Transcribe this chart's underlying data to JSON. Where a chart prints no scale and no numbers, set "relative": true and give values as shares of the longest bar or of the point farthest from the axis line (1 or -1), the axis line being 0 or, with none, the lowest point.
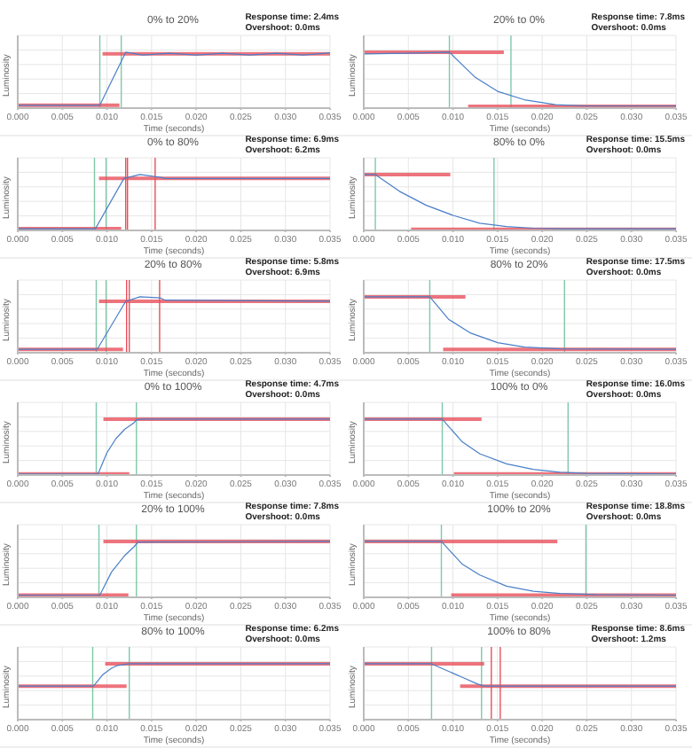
{
  "chart_data": [
    {
      "type": "line",
      "title": "0% to 20%",
      "annotations": [
        "Response time: 2.4ms",
        "Overshoot: 0.0ms"
      ],
      "xlabel": "Time (seconds)",
      "ylabel": "Luminosity",
      "relative": true,
      "grid": true,
      "xlim": [
        0,
        0.035
      ],
      "xticks": [
        {
          "value": 0,
          "label": "0.000"
        },
        {
          "value": 0.005,
          "label": "0.005"
        },
        {
          "value": 0.01,
          "label": "0.010"
        },
        {
          "value": 0.015,
          "label": "0.015"
        },
        {
          "value": 0.02,
          "label": "0.020"
        },
        {
          "value": 0.025,
          "label": "0.025"
        },
        {
          "value": 0.03,
          "label": "0.030"
        },
        {
          "value": 0.035,
          "label": "0.035"
        }
      ],
      "series": [
        {
          "type": "line",
          "color": "#e8505b",
          "x": [
            0,
            0.0114
          ],
          "values": [
            0.05,
            0.05
          ]
        },
        {
          "type": "line",
          "color": "#e8505b",
          "x": [
            0.0095,
            0.035
          ],
          "values": [
            0.97,
            0.97
          ]
        },
        {
          "type": "line",
          "color": "#4a7fc8",
          "x": [
            0,
            0.0092,
            0.0121,
            0.014,
            0.017,
            0.02,
            0.023,
            0.026,
            0.029,
            0.032,
            0.035
          ],
          "values": [
            0.05,
            0.05,
            1,
            0.95,
            0.98,
            0.95,
            0.98,
            0.95,
            0.98,
            0.95,
            0.99
          ]
        }
      ],
      "ref_lines": [
        {
          "axis": "x",
          "value": 0.0092,
          "color": "#7fc8a9"
        },
        {
          "axis": "x",
          "value": 0.0116,
          "color": "#7fc8a9"
        }
      ]
    },
    {
      "type": "line",
      "title": "20% to 0%",
      "annotations": [
        "Response time: 7.8ms",
        "Overshoot: 0.0ms"
      ],
      "xlabel": "Time (seconds)",
      "ylabel": "Luminosity",
      "relative": true,
      "grid": true,
      "xlim": [
        0,
        0.035
      ],
      "xticks": [
        {
          "value": 0,
          "label": "0.000"
        },
        {
          "value": 0.005,
          "label": "0.005"
        },
        {
          "value": 0.01,
          "label": "0.010"
        },
        {
          "value": 0.015,
          "label": "0.015"
        },
        {
          "value": 0.02,
          "label": "0.020"
        },
        {
          "value": 0.025,
          "label": "0.025"
        },
        {
          "value": 0.03,
          "label": "0.030"
        },
        {
          "value": 0.035,
          "label": "0.035"
        }
      ],
      "series": [
        {
          "type": "line",
          "color": "#e8505b",
          "x": [
            0,
            0.0157
          ],
          "values": [
            1,
            1
          ]
        },
        {
          "type": "line",
          "color": "#e8505b",
          "x": [
            0.0117,
            0.035
          ],
          "values": [
            0.03,
            0.03
          ]
        },
        {
          "type": "line",
          "color": "#4a7fc8",
          "x": [
            0,
            0.0045,
            0.0096,
            0.0125,
            0.015,
            0.018,
            0.0215,
            0.025,
            0.035
          ],
          "values": [
            0.97,
            0.98,
            1,
            0.55,
            0.3,
            0.15,
            0.06,
            0.04,
            0.04
          ]
        }
      ],
      "ref_lines": [
        {
          "axis": "x",
          "value": 0.0096,
          "color": "#7fc8a9"
        },
        {
          "axis": "x",
          "value": 0.0165,
          "color": "#7fc8a9"
        }
      ]
    },
    {
      "type": "line",
      "title": "0% to 80%",
      "annotations": [
        "Response time: 6.9ms",
        "Overshoot: 6.2ms"
      ],
      "xlabel": "Time (seconds)",
      "ylabel": "Luminosity",
      "relative": true,
      "grid": true,
      "xlim": [
        0,
        0.035
      ],
      "xticks": [
        {
          "value": 0,
          "label": "0.000"
        },
        {
          "value": 0.005,
          "label": "0.005"
        },
        {
          "value": 0.01,
          "label": "0.010"
        },
        {
          "value": 0.015,
          "label": "0.015"
        },
        {
          "value": 0.02,
          "label": "0.020"
        },
        {
          "value": 0.025,
          "label": "0.025"
        },
        {
          "value": 0.03,
          "label": "0.030"
        },
        {
          "value": 0.035,
          "label": "0.035"
        }
      ],
      "series": [
        {
          "type": "line",
          "color": "#e8505b",
          "x": [
            0,
            0.0116
          ],
          "values": [
            0.03,
            0.03
          ]
        },
        {
          "type": "line",
          "color": "#e8505b",
          "x": [
            0.0091,
            0.035
          ],
          "values": [
            0.93,
            0.93
          ]
        },
        {
          "type": "line",
          "color": "#4a7fc8",
          "x": [
            0,
            0.0087,
            0.0119,
            0.0137,
            0.016,
            0.0165,
            0.035
          ],
          "values": [
            0.03,
            0.03,
            0.93,
            1,
            0.95,
            0.93,
            0.93
          ]
        }
      ],
      "ref_lines": [
        {
          "axis": "x",
          "value": 0.0086,
          "color": "#7fc8a9"
        },
        {
          "axis": "x",
          "value": 0.0099,
          "color": "#7fc8a9"
        },
        {
          "axis": "x",
          "value": 0.0121,
          "color": "#e8505b"
        },
        {
          "axis": "x",
          "value": 0.0123,
          "color": "#e8505b"
        },
        {
          "axis": "x",
          "value": 0.0154,
          "color": "#e8505b"
        }
      ]
    },
    {
      "type": "line",
      "title": "80% to 0%",
      "annotations": [
        "Response time: 15.5ms",
        "Overshoot: 0.0ms"
      ],
      "xlabel": "Time (seconds)",
      "ylabel": "Luminosity",
      "relative": true,
      "grid": true,
      "xlim": [
        0,
        0.035
      ],
      "xticks": [
        {
          "value": 0,
          "label": "0.000"
        },
        {
          "value": 0.005,
          "label": "0.005"
        },
        {
          "value": 0.01,
          "label": "0.010"
        },
        {
          "value": 0.015,
          "label": "0.015"
        },
        {
          "value": 0.02,
          "label": "0.020"
        },
        {
          "value": 0.025,
          "label": "0.025"
        },
        {
          "value": 0.03,
          "label": "0.030"
        },
        {
          "value": 0.035,
          "label": "0.035"
        }
      ],
      "series": [
        {
          "type": "line",
          "color": "#e8505b",
          "x": [
            0,
            0.0097
          ],
          "values": [
            1,
            1
          ]
        },
        {
          "type": "line",
          "color": "#e8505b",
          "x": [
            0.0053,
            0.035
          ],
          "values": [
            0.02,
            0.02
          ]
        },
        {
          "type": "line",
          "color": "#4a7fc8",
          "x": [
            0,
            0.0013,
            0.004,
            0.007,
            0.01,
            0.013,
            0.016,
            0.019,
            0.022,
            0.035
          ],
          "values": [
            1,
            1,
            0.7,
            0.45,
            0.27,
            0.13,
            0.07,
            0.04,
            0.03,
            0.03
          ]
        }
      ],
      "ref_lines": [
        {
          "axis": "x",
          "value": 0.0013,
          "color": "#7fc8a9"
        },
        {
          "axis": "x",
          "value": 0.0146,
          "color": "#7fc8a9"
        }
      ]
    },
    {
      "type": "line",
      "title": "20% to 80%",
      "annotations": [
        "Response time: 5.8ms",
        "Overshoot: 6.9ms"
      ],
      "xlabel": "Time (seconds)",
      "ylabel": "Luminosity",
      "relative": true,
      "grid": true,
      "xlim": [
        0,
        0.035
      ],
      "xticks": [
        {
          "value": 0,
          "label": "0.000"
        },
        {
          "value": 0.005,
          "label": "0.005"
        },
        {
          "value": 0.01,
          "label": "0.010"
        },
        {
          "value": 0.015,
          "label": "0.015"
        },
        {
          "value": 0.02,
          "label": "0.020"
        },
        {
          "value": 0.025,
          "label": "0.025"
        },
        {
          "value": 0.03,
          "label": "0.030"
        },
        {
          "value": 0.035,
          "label": "0.035"
        }
      ],
      "series": [
        {
          "type": "line",
          "color": "#e8505b",
          "x": [
            0,
            0.0118
          ],
          "values": [
            0.06,
            0.06
          ]
        },
        {
          "type": "line",
          "color": "#e8505b",
          "x": [
            0.0091,
            0.035
          ],
          "values": [
            0.92,
            0.92
          ]
        },
        {
          "type": "line",
          "color": "#4a7fc8",
          "x": [
            0,
            0.0089,
            0.0121,
            0.0137,
            0.016,
            0.0165,
            0.035
          ],
          "values": [
            0.06,
            0.06,
            0.92,
            1,
            0.98,
            0.94,
            0.92
          ]
        }
      ],
      "ref_lines": [
        {
          "axis": "x",
          "value": 0.0088,
          "color": "#7fc8a9"
        },
        {
          "axis": "x",
          "value": 0.0099,
          "color": "#7fc8a9"
        },
        {
          "axis": "x",
          "value": 0.0122,
          "color": "#e8505b"
        },
        {
          "axis": "x",
          "value": 0.0125,
          "color": "#e8505b"
        },
        {
          "axis": "x",
          "value": 0.0159,
          "color": "#e8505b"
        }
      ]
    },
    {
      "type": "line",
      "title": "80% to 20%",
      "annotations": [
        "Response time: 17.5ms",
        "Overshoot: 0.0ms"
      ],
      "xlabel": "Time (seconds)",
      "ylabel": "Luminosity",
      "relative": true,
      "grid": true,
      "xlim": [
        0,
        0.035
      ],
      "xticks": [
        {
          "value": 0,
          "label": "0.000"
        },
        {
          "value": 0.005,
          "label": "0.005"
        },
        {
          "value": 0.01,
          "label": "0.010"
        },
        {
          "value": 0.015,
          "label": "0.015"
        },
        {
          "value": 0.02,
          "label": "0.020"
        },
        {
          "value": 0.025,
          "label": "0.025"
        },
        {
          "value": 0.03,
          "label": "0.030"
        },
        {
          "value": 0.035,
          "label": "0.035"
        }
      ],
      "series": [
        {
          "type": "line",
          "color": "#e8505b",
          "x": [
            0,
            0.0114
          ],
          "values": [
            1,
            1
          ]
        },
        {
          "type": "line",
          "color": "#e8505b",
          "x": [
            0.0089,
            0.035
          ],
          "values": [
            0.06,
            0.06
          ]
        },
        {
          "type": "line",
          "color": "#4a7fc8",
          "x": [
            0,
            0.0074,
            0.0095,
            0.012,
            0.015,
            0.018,
            0.022,
            0.035
          ],
          "values": [
            1,
            1,
            0.6,
            0.35,
            0.18,
            0.1,
            0.07,
            0.06
          ]
        }
      ],
      "ref_lines": [
        {
          "axis": "x",
          "value": 0.0074,
          "color": "#7fc8a9"
        },
        {
          "axis": "x",
          "value": 0.0225,
          "color": "#7fc8a9"
        }
      ]
    },
    {
      "type": "line",
      "title": "0% to 100%",
      "annotations": [
        "Response time: 4.7ms",
        "Overshoot: 0.0ms"
      ],
      "xlabel": "Time (seconds)",
      "ylabel": "Luminosity",
      "relative": true,
      "grid": true,
      "xlim": [
        0,
        0.035
      ],
      "xticks": [
        {
          "value": 0,
          "label": "0.000"
        },
        {
          "value": 0.005,
          "label": "0.005"
        },
        {
          "value": 0.01,
          "label": "0.010"
        },
        {
          "value": 0.015,
          "label": "0.015"
        },
        {
          "value": 0.02,
          "label": "0.020"
        },
        {
          "value": 0.025,
          "label": "0.025"
        },
        {
          "value": 0.03,
          "label": "0.030"
        },
        {
          "value": 0.035,
          "label": "0.035"
        }
      ],
      "series": [
        {
          "type": "line",
          "color": "#e8505b",
          "x": [
            0,
            0.0125
          ],
          "values": [
            0.02,
            0.02
          ]
        },
        {
          "type": "line",
          "color": "#e8505b",
          "x": [
            0.0096,
            0.035
          ],
          "values": [
            1,
            1
          ]
        },
        {
          "type": "line",
          "color": "#4a7fc8",
          "x": [
            0,
            0.009,
            0.01,
            0.011,
            0.012,
            0.013,
            0.0133,
            0.014,
            0.035
          ],
          "values": [
            0.02,
            0.02,
            0.4,
            0.65,
            0.82,
            0.93,
            0.99,
            1,
            1
          ]
        }
      ],
      "ref_lines": [
        {
          "axis": "x",
          "value": 0.0088,
          "color": "#7fc8a9"
        },
        {
          "axis": "x",
          "value": 0.0133,
          "color": "#7fc8a9"
        }
      ]
    },
    {
      "type": "line",
      "title": "100% to 0%",
      "annotations": [
        "Response time: 16.0ms",
        "Overshoot: 0.0ms"
      ],
      "xlabel": "Time (seconds)",
      "ylabel": "Luminosity",
      "relative": true,
      "grid": true,
      "xlim": [
        0,
        0.035
      ],
      "xticks": [
        {
          "value": 0,
          "label": "0.000"
        },
        {
          "value": 0.005,
          "label": "0.005"
        },
        {
          "value": 0.01,
          "label": "0.010"
        },
        {
          "value": 0.015,
          "label": "0.015"
        },
        {
          "value": 0.02,
          "label": "0.020"
        },
        {
          "value": 0.025,
          "label": "0.025"
        },
        {
          "value": 0.03,
          "label": "0.030"
        },
        {
          "value": 0.035,
          "label": "0.035"
        }
      ],
      "series": [
        {
          "type": "line",
          "color": "#e8505b",
          "x": [
            0,
            0.0132
          ],
          "values": [
            1,
            1
          ]
        },
        {
          "type": "line",
          "color": "#e8505b",
          "x": [
            0.0101,
            0.035
          ],
          "values": [
            0.02,
            0.02
          ]
        },
        {
          "type": "line",
          "color": "#4a7fc8",
          "x": [
            0,
            0.0088,
            0.011,
            0.013,
            0.016,
            0.019,
            0.022,
            0.025,
            0.035
          ],
          "values": [
            1,
            1,
            0.6,
            0.38,
            0.2,
            0.1,
            0.05,
            0.03,
            0.02
          ]
        }
      ],
      "ref_lines": [
        {
          "axis": "x",
          "value": 0.0088,
          "color": "#7fc8a9"
        },
        {
          "axis": "x",
          "value": 0.0229,
          "color": "#7fc8a9"
        }
      ]
    },
    {
      "type": "line",
      "title": "20% to 100%",
      "annotations": [
        "Response time: 7.8ms",
        "Overshoot: 0.0ms"
      ],
      "xlabel": "Time (seconds)",
      "ylabel": "Luminosity",
      "relative": true,
      "grid": true,
      "xlim": [
        0,
        0.035
      ],
      "xticks": [
        {
          "value": 0,
          "label": "0.000"
        },
        {
          "value": 0.005,
          "label": "0.005"
        },
        {
          "value": 0.01,
          "label": "0.010"
        },
        {
          "value": 0.015,
          "label": "0.015"
        },
        {
          "value": 0.02,
          "label": "0.020"
        },
        {
          "value": 0.025,
          "label": "0.025"
        },
        {
          "value": 0.03,
          "label": "0.030"
        },
        {
          "value": 0.035,
          "label": "0.035"
        }
      ],
      "series": [
        {
          "type": "line",
          "color": "#e8505b",
          "x": [
            0,
            0.0124
          ],
          "values": [
            0.04,
            0.04
          ]
        },
        {
          "type": "line",
          "color": "#e8505b",
          "x": [
            0.0096,
            0.035
          ],
          "values": [
            1,
            1
          ]
        },
        {
          "type": "line",
          "color": "#4a7fc8",
          "x": [
            0,
            0.0092,
            0.0105,
            0.012,
            0.013,
            0.0135,
            0.035
          ],
          "values": [
            0.04,
            0.04,
            0.45,
            0.75,
            0.9,
            0.99,
            1
          ]
        }
      ],
      "ref_lines": [
        {
          "axis": "x",
          "value": 0.0091,
          "color": "#7fc8a9"
        },
        {
          "axis": "x",
          "value": 0.0133,
          "color": "#7fc8a9"
        }
      ]
    },
    {
      "type": "line",
      "title": "100% to 20%",
      "annotations": [
        "Response time: 18.8ms",
        "Overshoot: 0.0ms"
      ],
      "xlabel": "Time (seconds)",
      "ylabel": "Luminosity",
      "relative": true,
      "grid": true,
      "xlim": [
        0,
        0.035
      ],
      "xticks": [
        {
          "value": 0,
          "label": "0.000"
        },
        {
          "value": 0.005,
          "label": "0.005"
        },
        {
          "value": 0.01,
          "label": "0.010"
        },
        {
          "value": 0.015,
          "label": "0.015"
        },
        {
          "value": 0.02,
          "label": "0.020"
        },
        {
          "value": 0.025,
          "label": "0.025"
        },
        {
          "value": 0.03,
          "label": "0.030"
        },
        {
          "value": 0.035,
          "label": "0.035"
        }
      ],
      "series": [
        {
          "type": "line",
          "color": "#e8505b",
          "x": [
            0,
            0.0217
          ],
          "values": [
            1,
            1
          ]
        },
        {
          "type": "line",
          "color": "#e8505b",
          "x": [
            0.0098,
            0.035
          ],
          "values": [
            0.04,
            0.04
          ]
        },
        {
          "type": "line",
          "color": "#4a7fc8",
          "x": [
            0,
            0.0087,
            0.011,
            0.013,
            0.016,
            0.019,
            0.022,
            0.026,
            0.035
          ],
          "values": [
            1,
            1,
            0.6,
            0.4,
            0.2,
            0.11,
            0.07,
            0.05,
            0.04
          ]
        }
      ],
      "ref_lines": [
        {
          "axis": "x",
          "value": 0.0087,
          "color": "#7fc8a9"
        },
        {
          "axis": "x",
          "value": 0.0249,
          "color": "#7fc8a9"
        }
      ]
    },
    {
      "type": "line",
      "title": "80% to 100%",
      "annotations": [
        "Response time: 6.2ms",
        "Overshoot: 0.0ms"
      ],
      "xlabel": "Time (seconds)",
      "ylabel": "Luminosity",
      "relative": true,
      "grid": true,
      "xlim": [
        0,
        0.035
      ],
      "xticks": [
        {
          "value": 0,
          "label": "0.000"
        },
        {
          "value": 0.005,
          "label": "0.005"
        },
        {
          "value": 0.01,
          "label": "0.010"
        },
        {
          "value": 0.015,
          "label": "0.015"
        },
        {
          "value": 0.02,
          "label": "0.020"
        },
        {
          "value": 0.025,
          "label": "0.025"
        },
        {
          "value": 0.03,
          "label": "0.030"
        },
        {
          "value": 0.035,
          "label": "0.035"
        }
      ],
      "series": [
        {
          "type": "line",
          "color": "#e8505b",
          "x": [
            0,
            0.0122
          ],
          "values": [
            0.6,
            0.6
          ]
        },
        {
          "type": "line",
          "color": "#e8505b",
          "x": [
            0.0098,
            0.035
          ],
          "values": [
            1,
            1
          ]
        },
        {
          "type": "line",
          "color": "#4a7fc8",
          "x": [
            0,
            0.0085,
            0.0095,
            0.0105,
            0.0112,
            0.0125,
            0.035
          ],
          "values": [
            0.6,
            0.6,
            0.8,
            0.92,
            0.97,
            1,
            1
          ]
        }
      ],
      "ref_lines": [
        {
          "axis": "x",
          "value": 0.0084,
          "color": "#7fc8a9"
        },
        {
          "axis": "x",
          "value": 0.0125,
          "color": "#7fc8a9"
        }
      ]
    },
    {
      "type": "line",
      "title": "100% to 80%",
      "annotations": [
        "Response time: 8.6ms",
        "Overshoot: 1.2ms"
      ],
      "xlabel": "Time (seconds)",
      "ylabel": "Luminosity",
      "relative": true,
      "grid": true,
      "xlim": [
        0,
        0.035
      ],
      "xticks": [
        {
          "value": 0,
          "label": "0.000"
        },
        {
          "value": 0.005,
          "label": "0.005"
        },
        {
          "value": 0.01,
          "label": "0.010"
        },
        {
          "value": 0.015,
          "label": "0.015"
        },
        {
          "value": 0.02,
          "label": "0.020"
        },
        {
          "value": 0.025,
          "label": "0.025"
        },
        {
          "value": 0.03,
          "label": "0.030"
        },
        {
          "value": 0.035,
          "label": "0.035"
        }
      ],
      "series": [
        {
          "type": "line",
          "color": "#e8505b",
          "x": [
            0,
            0.0135
          ],
          "values": [
            1,
            1
          ]
        },
        {
          "type": "line",
          "color": "#e8505b",
          "x": [
            0.0108,
            0.035
          ],
          "values": [
            0.6,
            0.6
          ]
        },
        {
          "type": "line",
          "color": "#4a7fc8",
          "x": [
            0,
            0.0076,
            0.009,
            0.011,
            0.0127,
            0.0135,
            0.035
          ],
          "values": [
            1,
            1,
            0.9,
            0.76,
            0.64,
            0.6,
            0.6
          ]
        }
      ],
      "ref_lines": [
        {
          "axis": "x",
          "value": 0.0076,
          "color": "#7fc8a9"
        },
        {
          "axis": "x",
          "value": 0.0132,
          "color": "#7fc8a9"
        },
        {
          "axis": "x",
          "value": 0.0143,
          "color": "#e8505b"
        },
        {
          "axis": "x",
          "value": 0.0153,
          "color": "#e8505b"
        }
      ]
    }
  ]
}
